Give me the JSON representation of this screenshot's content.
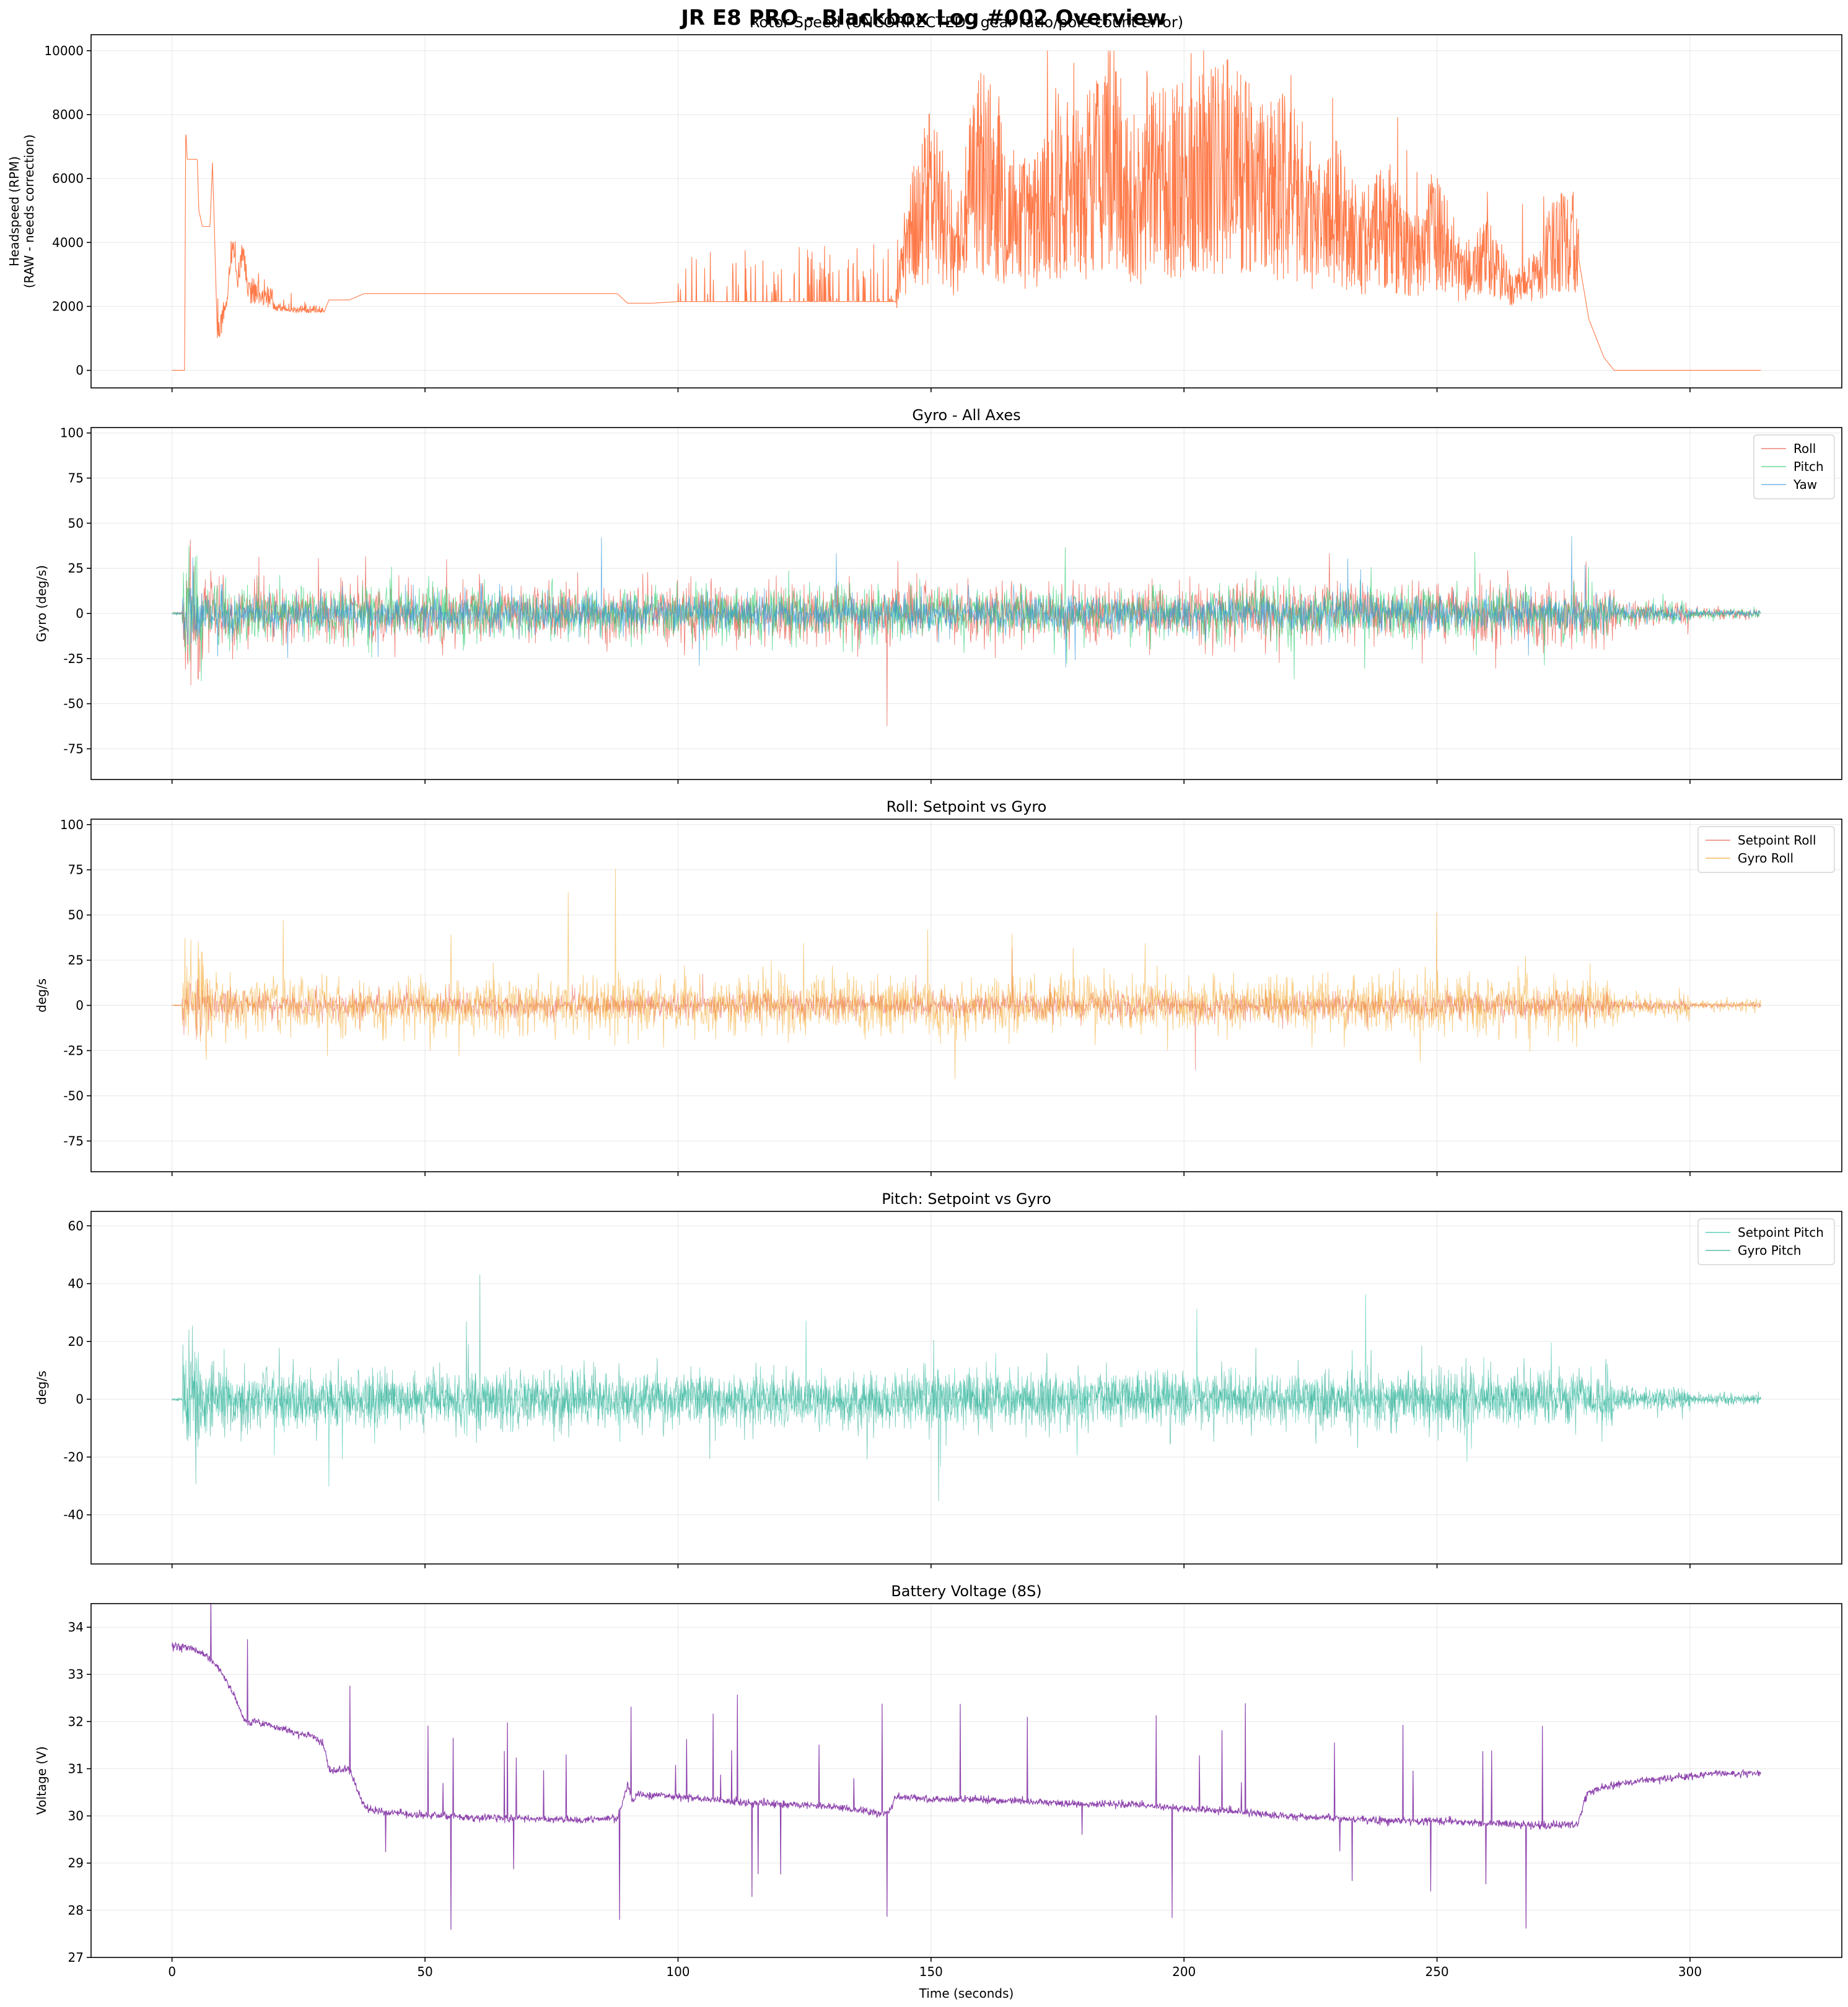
{
  "figure": {
    "title": "JR E8 PRO - Blackbox Log #002 Overview",
    "xlabel": "Time (seconds)"
  },
  "chart_data": [
    {
      "type": "line",
      "title": "Rotor Speed (UNCORRECTED - gear ratio/pole count error)",
      "xlabel": "",
      "ylabel": "Headspeed (RPM)\n(RAW - needs correction)",
      "xlim": [
        -16,
        330
      ],
      "ylim": [
        -550,
        10500
      ],
      "yticks": [
        0,
        2000,
        4000,
        6000,
        8000,
        10000
      ],
      "xticks": [
        0,
        50,
        100,
        150,
        200,
        250,
        300
      ],
      "grid": true,
      "legend": "none",
      "series": [
        {
          "color": "#ff6b35",
          "x": [
            0,
            2.5,
            2.7,
            3,
            5,
            5.3,
            6,
            7.5,
            8,
            9,
            10,
            11,
            12,
            13,
            14,
            15,
            17,
            20,
            25,
            28,
            30,
            31,
            35,
            38,
            40,
            45,
            60,
            75,
            88,
            90,
            95,
            100,
            110,
            120,
            130,
            140,
            143,
            145,
            150,
            155,
            160,
            165,
            170,
            175,
            180,
            185,
            190,
            195,
            200,
            205,
            210,
            215,
            220,
            225,
            230,
            235,
            240,
            245,
            250,
            255,
            260,
            265,
            270,
            275,
            278,
            280,
            283,
            285,
            300,
            314
          ],
          "y": [
            0,
            0,
            7600,
            6600,
            6600,
            5000,
            4500,
            4500,
            6500,
            850,
            1200,
            2200,
            3700,
            2500,
            3500,
            2000,
            2100,
            1850,
            1800,
            1800,
            1800,
            2200,
            2200,
            2400,
            2400,
            2400,
            2400,
            2400,
            2400,
            2100,
            2100,
            2150,
            2150,
            2150,
            2150,
            2150,
            2150,
            4000,
            5500,
            3800,
            6500,
            5000,
            4500,
            6000,
            5500,
            7000,
            5000,
            6000,
            6000,
            6500,
            6500,
            5500,
            6000,
            4500,
            5000,
            4000,
            4500,
            3500,
            4500,
            3000,
            3500,
            2500,
            3000,
            4500,
            3500,
            1600,
            400,
            0,
            0,
            0
          ]
        }
      ]
    },
    {
      "type": "line",
      "title": "Gyro - All Axes",
      "xlabel": "",
      "ylabel": "Gyro (deg/s)",
      "xlim": [
        -16,
        330
      ],
      "ylim": [
        -92,
        103
      ],
      "yticks": [
        -75,
        -50,
        -25,
        0,
        25,
        50,
        75,
        100
      ],
      "xticks": [
        0,
        50,
        100,
        150,
        200,
        250,
        300
      ],
      "grid": true,
      "legend": "top-right",
      "series": [
        {
          "name": "Roll",
          "color": "#e74c3c"
        },
        {
          "name": "Pitch",
          "color": "#2ecc71"
        },
        {
          "name": "Yaw",
          "color": "#3498db"
        }
      ]
    },
    {
      "type": "line",
      "title": "Roll: Setpoint vs Gyro",
      "xlabel": "",
      "ylabel": "deg/s",
      "xlim": [
        -16,
        330
      ],
      "ylim": [
        -92,
        103
      ],
      "yticks": [
        -75,
        -50,
        -25,
        0,
        25,
        50,
        75,
        100
      ],
      "xticks": [
        0,
        50,
        100,
        150,
        200,
        250,
        300
      ],
      "grid": true,
      "legend": "top-right",
      "series": [
        {
          "name": "Setpoint Roll",
          "color": "#e74c3c"
        },
        {
          "name": "Gyro Roll",
          "color": "#f39c12"
        }
      ]
    },
    {
      "type": "line",
      "title": "Pitch: Setpoint vs Gyro",
      "xlabel": "",
      "ylabel": "deg/s",
      "xlim": [
        -16,
        330
      ],
      "ylim": [
        -57,
        65
      ],
      "yticks": [
        -40,
        -20,
        0,
        20,
        40,
        60
      ],
      "xticks": [
        0,
        50,
        100,
        150,
        200,
        250,
        300
      ],
      "grid": true,
      "legend": "top-right",
      "series": [
        {
          "name": "Setpoint Pitch",
          "color": "#1abc9c"
        },
        {
          "name": "Gyro Pitch",
          "color": "#16a085"
        }
      ]
    },
    {
      "type": "line",
      "title": "Battery Voltage (8S)",
      "xlabel": "Time (seconds)",
      "ylabel": "Voltage (V)",
      "xlim": [
        -16,
        330
      ],
      "ylim": [
        27,
        34.5
      ],
      "yticks": [
        27,
        28,
        29,
        30,
        31,
        32,
        33,
        34
      ],
      "xticks": [
        0,
        50,
        100,
        150,
        200,
        250,
        300
      ],
      "grid": true,
      "legend": "none",
      "series": [
        {
          "color": "#8e44ad",
          "x": [
            0,
            4,
            6,
            8,
            10,
            12,
            13,
            14,
            15,
            16,
            20,
            25,
            28,
            30,
            31,
            32,
            35,
            38,
            39,
            40,
            45,
            50,
            55,
            60,
            70,
            80,
            88,
            89,
            90,
            91,
            92,
            95,
            100,
            105,
            110,
            120,
            130,
            140,
            142,
            143,
            145,
            150,
            160,
            170,
            180,
            190,
            200,
            210,
            220,
            230,
            240,
            250,
            260,
            270,
            275,
            278,
            279,
            280,
            285,
            290,
            295,
            300,
            305,
            310,
            314
          ],
          "y": [
            33.6,
            33.55,
            33.45,
            33.3,
            33.0,
            32.6,
            32.4,
            32.1,
            31.95,
            32.0,
            31.9,
            31.75,
            31.7,
            31.5,
            31.0,
            30.95,
            31.0,
            30.2,
            30.15,
            30.1,
            30.05,
            30.0,
            30.0,
            29.95,
            29.95,
            29.9,
            29.95,
            30.25,
            30.7,
            30.3,
            30.45,
            30.45,
            30.4,
            30.35,
            30.3,
            30.25,
            30.2,
            30.05,
            30.1,
            30.4,
            30.4,
            30.35,
            30.35,
            30.3,
            30.25,
            30.25,
            30.15,
            30.1,
            30.0,
            29.95,
            29.9,
            29.9,
            29.85,
            29.8,
            29.8,
            29.85,
            30.3,
            30.5,
            30.65,
            30.75,
            30.8,
            30.85,
            30.9,
            30.9,
            30.92
          ]
        }
      ]
    }
  ]
}
